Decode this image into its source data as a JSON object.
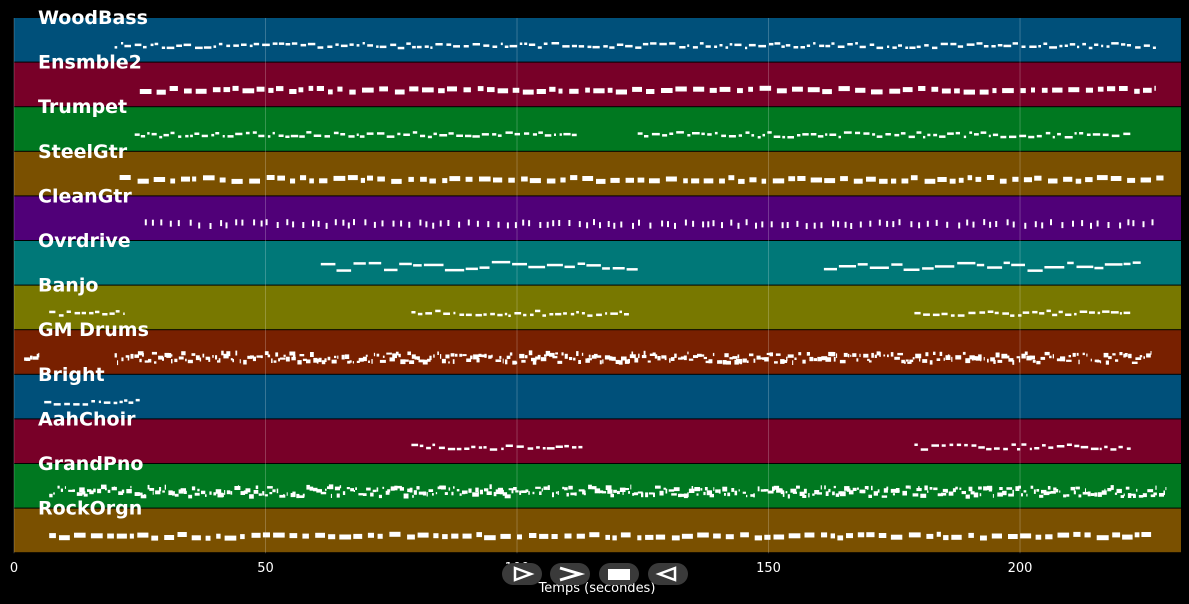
{
  "chart_data": {
    "type": "piano-roll",
    "xlabel": "Temps (secondes)",
    "x_ticks": [
      0,
      50,
      100,
      150,
      200
    ],
    "xlim": [
      0,
      232
    ],
    "grid": true,
    "tracks": [
      {
        "name": "WoodBass",
        "color": "#00507a",
        "note_style": "thin",
        "segments": [
          [
            20,
            227
          ]
        ]
      },
      {
        "name": "Ensmble2",
        "color": "#780028",
        "note_style": "block",
        "segments": [
          [
            25,
            227
          ]
        ]
      },
      {
        "name": "Trumpet",
        "color": "#007820",
        "note_style": "thin",
        "segments": [
          [
            24,
            112
          ],
          [
            124,
            222
          ]
        ]
      },
      {
        "name": "SteelGtr",
        "color": "#7a5000",
        "note_style": "block",
        "segments": [
          [
            21,
            229
          ]
        ]
      },
      {
        "name": "CleanGtr",
        "color": "#500078",
        "note_style": "short",
        "segments": [
          [
            26,
            228
          ]
        ]
      },
      {
        "name": "Ovrdrive",
        "color": "#007878",
        "note_style": "legato",
        "segments": [
          [
            61,
            124
          ],
          [
            161,
            224
          ]
        ]
      },
      {
        "name": "Banjo",
        "color": "#787800",
        "note_style": "thin",
        "segments": [
          [
            7,
            22
          ],
          [
            79,
            123
          ],
          [
            179,
            222
          ]
        ]
      },
      {
        "name": "GM Drums",
        "color": "#782000",
        "note_style": "dense",
        "segments": [
          [
            2,
            5
          ],
          [
            20,
            226
          ]
        ]
      },
      {
        "name": "Bright",
        "color": "#00507a",
        "note_style": "thin",
        "segments": [
          [
            6,
            25
          ]
        ]
      },
      {
        "name": "AahChoir",
        "color": "#780028",
        "note_style": "thin",
        "segments": [
          [
            79,
            113
          ],
          [
            179,
            222
          ]
        ]
      },
      {
        "name": "GrandPno",
        "color": "#007820",
        "note_style": "dense",
        "segments": [
          [
            7,
            229
          ]
        ]
      },
      {
        "name": "RockOrgn",
        "color": "#7a5000",
        "note_style": "block",
        "segments": [
          [
            7,
            227
          ]
        ]
      }
    ]
  },
  "controls": [
    {
      "name": "play-button",
      "icon": "play-outline-icon"
    },
    {
      "name": "forward-button",
      "icon": "chevron-right-icon"
    },
    {
      "name": "stop-button",
      "icon": "stop-square-icon"
    },
    {
      "name": "rewind-button",
      "icon": "play-reverse-outline-icon"
    }
  ]
}
